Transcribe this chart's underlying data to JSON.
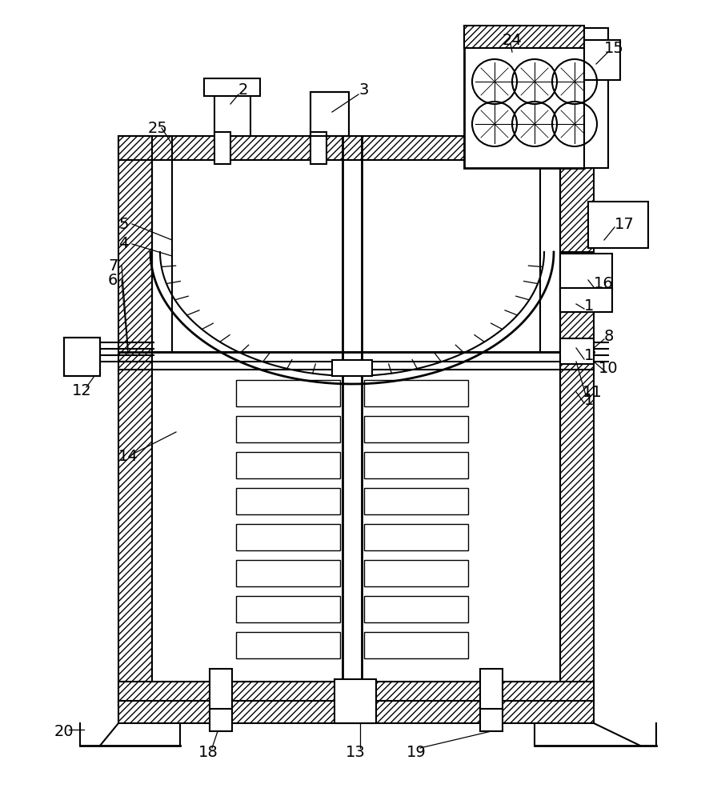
{
  "bg_color": "#ffffff",
  "line_color": "#000000",
  "fig_width": 9.01,
  "fig_height": 10.0,
  "dpi": 100
}
